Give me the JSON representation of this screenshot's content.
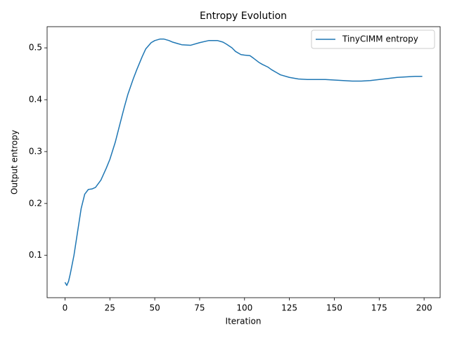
{
  "chart_data": {
    "type": "line",
    "title": "Entropy Evolution",
    "x_label": "Iteration",
    "y_label": "Output entropy",
    "x": [
      0,
      1,
      2,
      3,
      5,
      7,
      9,
      11,
      13,
      15,
      17,
      20,
      23,
      25,
      28,
      30,
      33,
      35,
      38,
      40,
      43,
      45,
      48,
      50,
      53,
      55,
      58,
      60,
      63,
      65,
      70,
      75,
      80,
      85,
      88,
      90,
      93,
      95,
      98,
      100,
      103,
      105,
      108,
      110,
      113,
      115,
      118,
      120,
      125,
      130,
      135,
      140,
      145,
      150,
      155,
      160,
      165,
      170,
      175,
      180,
      185,
      190,
      195,
      199
    ],
    "series": [
      {
        "name": "TinyCIMM entropy",
        "color": "#1f77b4",
        "values": [
          0.048,
          0.042,
          0.05,
          0.065,
          0.1,
          0.145,
          0.19,
          0.218,
          0.227,
          0.228,
          0.231,
          0.245,
          0.268,
          0.285,
          0.318,
          0.345,
          0.385,
          0.41,
          0.44,
          0.458,
          0.483,
          0.498,
          0.51,
          0.514,
          0.517,
          0.517,
          0.514,
          0.511,
          0.508,
          0.506,
          0.505,
          0.51,
          0.514,
          0.514,
          0.511,
          0.507,
          0.5,
          0.493,
          0.487,
          0.486,
          0.485,
          0.48,
          0.472,
          0.468,
          0.463,
          0.458,
          0.452,
          0.448,
          0.443,
          0.44,
          0.439,
          0.439,
          0.439,
          0.438,
          0.437,
          0.436,
          0.436,
          0.437,
          0.439,
          0.441,
          0.443,
          0.444,
          0.445,
          0.445
        ]
      }
    ],
    "xlim": [
      -9.95,
      208.95
    ],
    "ylim": [
      0.0184,
      0.5408
    ],
    "xticks": [
      0,
      25,
      50,
      75,
      100,
      125,
      150,
      175,
      200
    ],
    "yticks": [
      0.1,
      0.2,
      0.3,
      0.4,
      0.5
    ],
    "legend": "upper right"
  }
}
